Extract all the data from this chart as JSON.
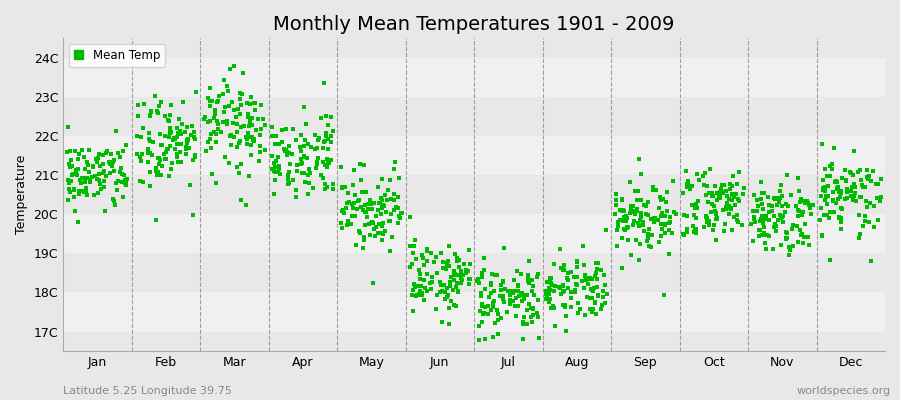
{
  "title": "Monthly Mean Temperatures 1901 - 2009",
  "ylabel": "Temperature",
  "xlabel_bottom_left": "Latitude 5.25 Longitude 39.75",
  "xlabel_bottom_right": "worldspecies.org",
  "legend_label": "Mean Temp",
  "bg_color": "#e8e8e8",
  "plot_bg_color": "#e8e8e8",
  "band_color_light": "#f0f0f0",
  "dot_color": "#00bb00",
  "dot_size": 8,
  "yticks": [
    17,
    18,
    19,
    20,
    21,
    22,
    23,
    24
  ],
  "ylim": [
    16.5,
    24.5
  ],
  "months": [
    "Jan",
    "Feb",
    "Mar",
    "Apr",
    "May",
    "Jun",
    "Jul",
    "Aug",
    "Sep",
    "Oct",
    "Nov",
    "Dec"
  ],
  "monthly_means": [
    21.0,
    21.8,
    22.3,
    21.4,
    20.1,
    18.4,
    17.85,
    18.1,
    19.8,
    20.2,
    20.0,
    20.5
  ],
  "monthly_stds": [
    0.45,
    0.52,
    0.58,
    0.52,
    0.48,
    0.42,
    0.42,
    0.42,
    0.42,
    0.48,
    0.48,
    0.52
  ],
  "n_years": 109,
  "seed": 42,
  "title_fontsize": 14,
  "tick_fontsize": 9,
  "axis_label_fontsize": 9
}
